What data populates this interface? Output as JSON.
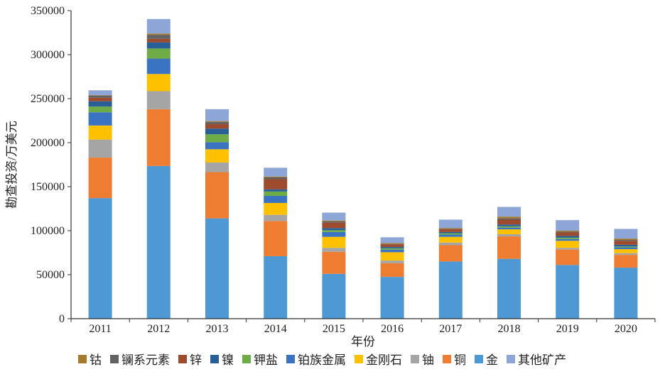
{
  "chart_data": {
    "type": "bar",
    "stacked": true,
    "categories": [
      "2011",
      "2012",
      "2013",
      "2014",
      "2015",
      "2016",
      "2017",
      "2018",
      "2019",
      "2020"
    ],
    "xlabel": "年份",
    "ylabel": "勘查投资/万美元",
    "ylim": [
      0,
      350000
    ],
    "yticks": [
      "0",
      "50000",
      "100000",
      "150000",
      "200000",
      "250000",
      "300000",
      "350000"
    ],
    "grid": false,
    "legend_position": "bottom",
    "series": [
      {
        "name": "金",
        "color": "#4e99d3",
        "values": [
          137000,
          173500,
          114000,
          71000,
          51000,
          47500,
          65000,
          68000,
          61000,
          58000
        ]
      },
      {
        "name": "铜",
        "color": "#ee7d31",
        "values": [
          46000,
          64500,
          52500,
          40000,
          25000,
          15500,
          18500,
          25500,
          17500,
          14500
        ]
      },
      {
        "name": "铀",
        "color": "#a5a5a5",
        "values": [
          20500,
          20500,
          11000,
          7000,
          4500,
          3000,
          3000,
          2500,
          2000,
          2000
        ]
      },
      {
        "name": "金刚石",
        "color": "#ffc000",
        "values": [
          16000,
          19500,
          15000,
          13500,
          12500,
          9500,
          6500,
          5500,
          8000,
          4500
        ]
      },
      {
        "name": "铂族金属",
        "color": "#3a73c2",
        "values": [
          15000,
          17500,
          8000,
          8000,
          5500,
          3000,
          2500,
          2000,
          2000,
          2000
        ]
      },
      {
        "name": "钾盐",
        "color": "#6eac46",
        "values": [
          6500,
          11500,
          9000,
          5000,
          2000,
          1500,
          1500,
          1500,
          1500,
          1000
        ]
      },
      {
        "name": "镍",
        "color": "#275f96",
        "values": [
          6000,
          7000,
          6500,
          2500,
          2500,
          1500,
          1500,
          2000,
          2000,
          2000
        ]
      },
      {
        "name": "锌",
        "color": "#9e4a2c",
        "values": [
          4000,
          4000,
          5000,
          11500,
          6000,
          3000,
          3000,
          5500,
          4000,
          4500
        ]
      },
      {
        "name": "镧系元素",
        "color": "#626262",
        "values": [
          2500,
          4500,
          2500,
          2000,
          1500,
          500,
          500,
          1500,
          1000,
          1000
        ]
      },
      {
        "name": "钴",
        "color": "#a47a2f",
        "values": [
          500,
          1500,
          1000,
          1000,
          1000,
          1000,
          1000,
          2000,
          1000,
          1500
        ]
      },
      {
        "name": "其他矿产",
        "color": "#8ea6d7",
        "values": [
          5500,
          16500,
          13500,
          10000,
          9000,
          6500,
          9500,
          11000,
          12000,
          11000
        ]
      }
    ],
    "legend_order": [
      "钴",
      "镧系元素",
      "锌",
      "镍",
      "钾盐",
      "铂族金属",
      "金刚石",
      "铀",
      "铜",
      "金",
      "其他矿产"
    ]
  }
}
